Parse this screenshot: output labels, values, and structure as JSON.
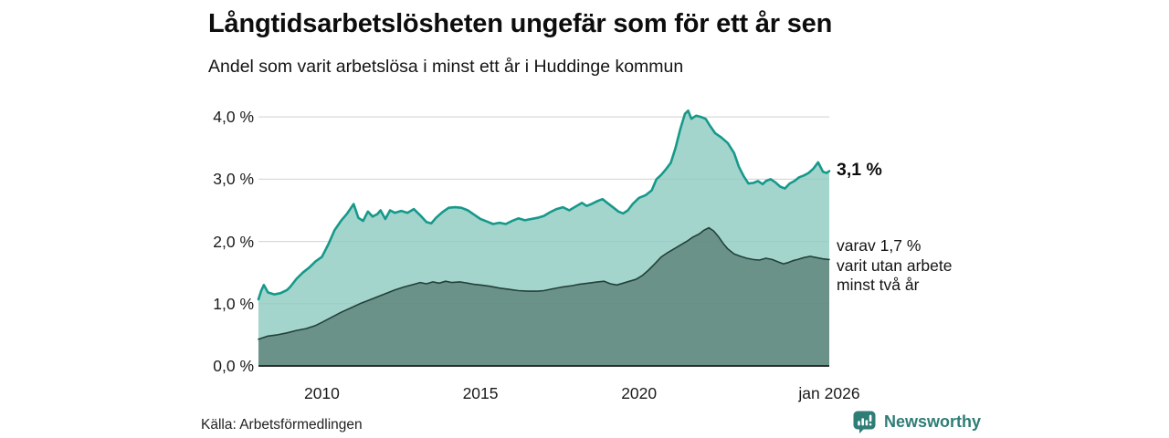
{
  "header": {
    "title": "Långtidsarbetslösheten ungefär som för ett år sen",
    "subtitle": "Andel som varit arbetslösa i minst ett år i Huddinge kommun"
  },
  "annotations": {
    "series1_end": "3,1 %",
    "series2_end_lines": [
      "varav 1,7 %",
      "varit utan arbete",
      "minst två år"
    ]
  },
  "source": {
    "label": "Källa: Arbetsförmedlingen"
  },
  "branding": {
    "name": "Newsworthy",
    "icon": "newsworthy-chart-bubble-icon",
    "color": "#2e7d76"
  },
  "colors": {
    "series1_line": "#16998a",
    "series1_fill": "rgba(141,203,193,0.8)",
    "series2_line": "#22413b",
    "series2_fill": "rgba(73,105,96,0.62)",
    "gridline": "#d9d9d9",
    "axis": "#2d2d2d"
  },
  "chart_data": {
    "type": "area",
    "title": "Långtidsarbetslösheten ungefär som för ett år sen",
    "subtitle": "Andel som varit arbetslösa i minst ett år i Huddinge kommun",
    "unit": "percent of workforce",
    "xlim": [
      2008.0,
      2026.0
    ],
    "ylim": [
      0,
      4.266
    ],
    "grid": "horizontal",
    "legend_position": "right-of-line-ends",
    "x_ticks": [
      {
        "x": 2010,
        "label": "2010"
      },
      {
        "x": 2015,
        "label": "2015"
      },
      {
        "x": 2020,
        "label": "2020"
      },
      {
        "x": 2026,
        "label": "jan 2026"
      }
    ],
    "y_ticks": [
      {
        "v": 0,
        "label": "0,0 %"
      },
      {
        "v": 1,
        "label": "1,0 %"
      },
      {
        "v": 2,
        "label": "2,0 %"
      },
      {
        "v": 3,
        "label": "3,0 %"
      },
      {
        "v": 4,
        "label": "4,0 %"
      }
    ],
    "series": [
      {
        "name": "Andel som varit arbetslösa minst ett år",
        "end_value": 3.1,
        "end_label": "3,1 %",
        "stroke": "#16998a",
        "fill": "rgba(141,203,193,0.8)",
        "stroke_width": 2.6,
        "points": [
          [
            2008.0,
            1.07
          ],
          [
            2008.08,
            1.2
          ],
          [
            2008.17,
            1.3
          ],
          [
            2008.3,
            1.18
          ],
          [
            2008.5,
            1.15
          ],
          [
            2008.7,
            1.17
          ],
          [
            2008.9,
            1.22
          ],
          [
            2009.0,
            1.27
          ],
          [
            2009.2,
            1.4
          ],
          [
            2009.4,
            1.5
          ],
          [
            2009.6,
            1.58
          ],
          [
            2009.8,
            1.68
          ],
          [
            2010.0,
            1.75
          ],
          [
            2010.2,
            1.95
          ],
          [
            2010.4,
            2.18
          ],
          [
            2010.6,
            2.33
          ],
          [
            2010.8,
            2.45
          ],
          [
            2011.0,
            2.6
          ],
          [
            2011.15,
            2.38
          ],
          [
            2011.3,
            2.33
          ],
          [
            2011.45,
            2.48
          ],
          [
            2011.6,
            2.4
          ],
          [
            2011.75,
            2.44
          ],
          [
            2011.85,
            2.5
          ],
          [
            2012.0,
            2.36
          ],
          [
            2012.15,
            2.5
          ],
          [
            2012.3,
            2.46
          ],
          [
            2012.5,
            2.49
          ],
          [
            2012.7,
            2.46
          ],
          [
            2012.9,
            2.52
          ],
          [
            2013.1,
            2.42
          ],
          [
            2013.3,
            2.31
          ],
          [
            2013.45,
            2.29
          ],
          [
            2013.6,
            2.38
          ],
          [
            2013.8,
            2.47
          ],
          [
            2014.0,
            2.54
          ],
          [
            2014.2,
            2.55
          ],
          [
            2014.4,
            2.54
          ],
          [
            2014.6,
            2.5
          ],
          [
            2014.8,
            2.43
          ],
          [
            2015.0,
            2.36
          ],
          [
            2015.2,
            2.32
          ],
          [
            2015.4,
            2.28
          ],
          [
            2015.6,
            2.3
          ],
          [
            2015.8,
            2.28
          ],
          [
            2016.0,
            2.33
          ],
          [
            2016.2,
            2.37
          ],
          [
            2016.4,
            2.34
          ],
          [
            2016.6,
            2.36
          ],
          [
            2016.8,
            2.38
          ],
          [
            2017.0,
            2.41
          ],
          [
            2017.2,
            2.47
          ],
          [
            2017.4,
            2.52
          ],
          [
            2017.6,
            2.55
          ],
          [
            2017.8,
            2.5
          ],
          [
            2018.0,
            2.56
          ],
          [
            2018.2,
            2.62
          ],
          [
            2018.35,
            2.57
          ],
          [
            2018.5,
            2.6
          ],
          [
            2018.7,
            2.65
          ],
          [
            2018.85,
            2.68
          ],
          [
            2019.0,
            2.62
          ],
          [
            2019.2,
            2.54
          ],
          [
            2019.35,
            2.48
          ],
          [
            2019.5,
            2.45
          ],
          [
            2019.65,
            2.5
          ],
          [
            2019.8,
            2.6
          ],
          [
            2020.0,
            2.7
          ],
          [
            2020.2,
            2.74
          ],
          [
            2020.4,
            2.82
          ],
          [
            2020.55,
            3.0
          ],
          [
            2020.7,
            3.07
          ],
          [
            2020.85,
            3.16
          ],
          [
            2021.0,
            3.26
          ],
          [
            2021.15,
            3.5
          ],
          [
            2021.3,
            3.8
          ],
          [
            2021.45,
            4.05
          ],
          [
            2021.55,
            4.1
          ],
          [
            2021.65,
            3.97
          ],
          [
            2021.8,
            4.02
          ],
          [
            2021.95,
            4.0
          ],
          [
            2022.1,
            3.97
          ],
          [
            2022.25,
            3.85
          ],
          [
            2022.4,
            3.74
          ],
          [
            2022.6,
            3.67
          ],
          [
            2022.8,
            3.58
          ],
          [
            2023.0,
            3.42
          ],
          [
            2023.15,
            3.2
          ],
          [
            2023.3,
            3.05
          ],
          [
            2023.45,
            2.93
          ],
          [
            2023.6,
            2.94
          ],
          [
            2023.75,
            2.97
          ],
          [
            2023.9,
            2.92
          ],
          [
            2024.0,
            2.97
          ],
          [
            2024.15,
            3.0
          ],
          [
            2024.3,
            2.95
          ],
          [
            2024.45,
            2.88
          ],
          [
            2024.6,
            2.85
          ],
          [
            2024.75,
            2.93
          ],
          [
            2024.9,
            2.97
          ],
          [
            2025.05,
            3.03
          ],
          [
            2025.2,
            3.06
          ],
          [
            2025.35,
            3.1
          ],
          [
            2025.5,
            3.17
          ],
          [
            2025.65,
            3.27
          ],
          [
            2025.8,
            3.12
          ],
          [
            2025.92,
            3.1
          ],
          [
            2026.0,
            3.13
          ]
        ]
      },
      {
        "name": "varav utan arbete minst två år",
        "end_value": 1.7,
        "end_label": "varav 1,7 % varit utan arbete minst två år",
        "stroke": "#22413b",
        "fill": "rgba(73,105,96,0.62)",
        "stroke_width": 1.6,
        "points": [
          [
            2008.0,
            0.43
          ],
          [
            2008.3,
            0.48
          ],
          [
            2008.6,
            0.5
          ],
          [
            2008.9,
            0.53
          ],
          [
            2009.2,
            0.57
          ],
          [
            2009.5,
            0.6
          ],
          [
            2009.8,
            0.65
          ],
          [
            2010.0,
            0.7
          ],
          [
            2010.3,
            0.78
          ],
          [
            2010.6,
            0.86
          ],
          [
            2010.9,
            0.93
          ],
          [
            2011.2,
            1.0
          ],
          [
            2011.5,
            1.06
          ],
          [
            2011.8,
            1.12
          ],
          [
            2012.0,
            1.16
          ],
          [
            2012.3,
            1.22
          ],
          [
            2012.6,
            1.27
          ],
          [
            2012.9,
            1.31
          ],
          [
            2013.1,
            1.34
          ],
          [
            2013.3,
            1.32
          ],
          [
            2013.5,
            1.35
          ],
          [
            2013.7,
            1.33
          ],
          [
            2013.9,
            1.36
          ],
          [
            2014.1,
            1.34
          ],
          [
            2014.35,
            1.35
          ],
          [
            2014.6,
            1.33
          ],
          [
            2014.8,
            1.31
          ],
          [
            2015.0,
            1.3
          ],
          [
            2015.3,
            1.28
          ],
          [
            2015.6,
            1.25
          ],
          [
            2015.9,
            1.23
          ],
          [
            2016.2,
            1.21
          ],
          [
            2016.5,
            1.2
          ],
          [
            2016.8,
            1.2
          ],
          [
            2017.0,
            1.21
          ],
          [
            2017.3,
            1.24
          ],
          [
            2017.6,
            1.27
          ],
          [
            2017.9,
            1.29
          ],
          [
            2018.1,
            1.31
          ],
          [
            2018.4,
            1.33
          ],
          [
            2018.7,
            1.35
          ],
          [
            2018.9,
            1.36
          ],
          [
            2019.1,
            1.32
          ],
          [
            2019.3,
            1.3
          ],
          [
            2019.5,
            1.33
          ],
          [
            2019.7,
            1.36
          ],
          [
            2019.9,
            1.39
          ],
          [
            2020.1,
            1.45
          ],
          [
            2020.3,
            1.54
          ],
          [
            2020.5,
            1.64
          ],
          [
            2020.7,
            1.75
          ],
          [
            2020.9,
            1.82
          ],
          [
            2021.1,
            1.88
          ],
          [
            2021.3,
            1.94
          ],
          [
            2021.5,
            2.0
          ],
          [
            2021.7,
            2.07
          ],
          [
            2021.9,
            2.12
          ],
          [
            2022.05,
            2.18
          ],
          [
            2022.2,
            2.22
          ],
          [
            2022.35,
            2.17
          ],
          [
            2022.5,
            2.08
          ],
          [
            2022.65,
            1.97
          ],
          [
            2022.8,
            1.88
          ],
          [
            2023.0,
            1.8
          ],
          [
            2023.2,
            1.76
          ],
          [
            2023.4,
            1.73
          ],
          [
            2023.6,
            1.71
          ],
          [
            2023.8,
            1.7
          ],
          [
            2024.0,
            1.73
          ],
          [
            2024.2,
            1.71
          ],
          [
            2024.4,
            1.67
          ],
          [
            2024.55,
            1.64
          ],
          [
            2024.7,
            1.66
          ],
          [
            2024.85,
            1.69
          ],
          [
            2025.0,
            1.71
          ],
          [
            2025.2,
            1.74
          ],
          [
            2025.4,
            1.76
          ],
          [
            2025.6,
            1.74
          ],
          [
            2025.8,
            1.72
          ],
          [
            2026.0,
            1.71
          ]
        ]
      }
    ]
  }
}
